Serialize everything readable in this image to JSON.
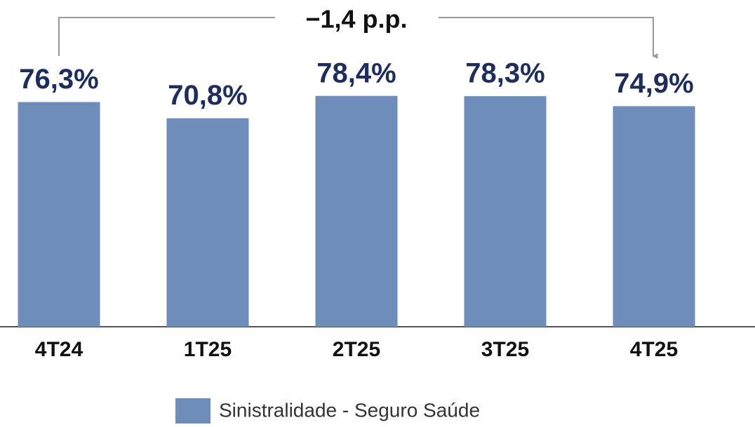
{
  "chart_data": {
    "type": "bar",
    "annotation": "−1,4 p.p.",
    "categories": [
      "4T24",
      "1T25",
      "2T25",
      "3T25",
      "4T25"
    ],
    "series": [
      {
        "name": "Sinistralidade - Seguro Saúde",
        "color": "#6f8dba",
        "values": [
          76.3,
          70.8,
          78.4,
          78.3,
          74.9
        ],
        "value_labels": [
          "76,3%",
          "70,8%",
          "78,4%",
          "78,3%",
          "74,9%"
        ]
      }
    ],
    "ylim": [
      0,
      100
    ]
  }
}
